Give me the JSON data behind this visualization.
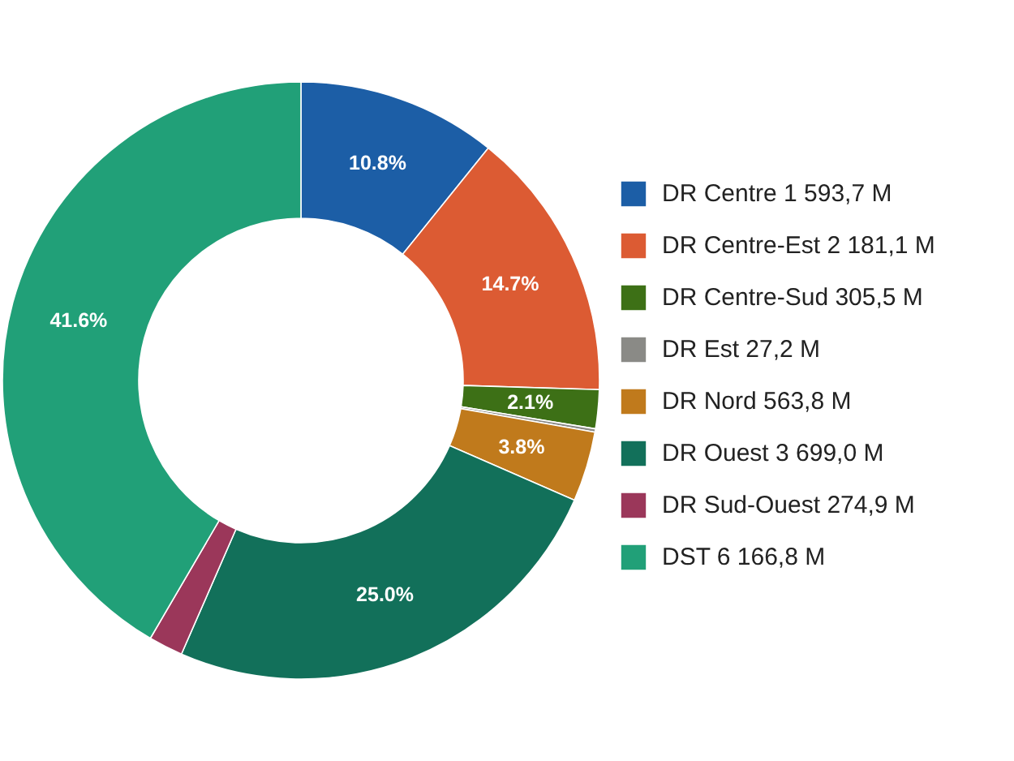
{
  "chart_data": {
    "type": "donut",
    "categories": [
      "DR Centre 1 593,7 M",
      "DR Centre-Est 2 181,1 M",
      "DR Centre-Sud 305,5 M",
      "DR Est 27,2 M",
      "DR Nord 563,8 M",
      "DR Ouest 3 699,0 M",
      "DR Sud-Ouest 274,9 M",
      "DST 6 166,8 M"
    ],
    "values": [
      10.8,
      14.7,
      2.1,
      0.18,
      3.8,
      25.0,
      1.86,
      41.6
    ],
    "colors": [
      "#1c5ea6",
      "#dc5b33",
      "#3d7016",
      "#8a8a86",
      "#c07a1c",
      "#12705a",
      "#9b375a",
      "#21a078"
    ],
    "value_labels": [
      "10.8%",
      "14.7%",
      "2.1%",
      null,
      "3.8%",
      "25.0%",
      null,
      "41.6%"
    ],
    "legend": "right"
  }
}
